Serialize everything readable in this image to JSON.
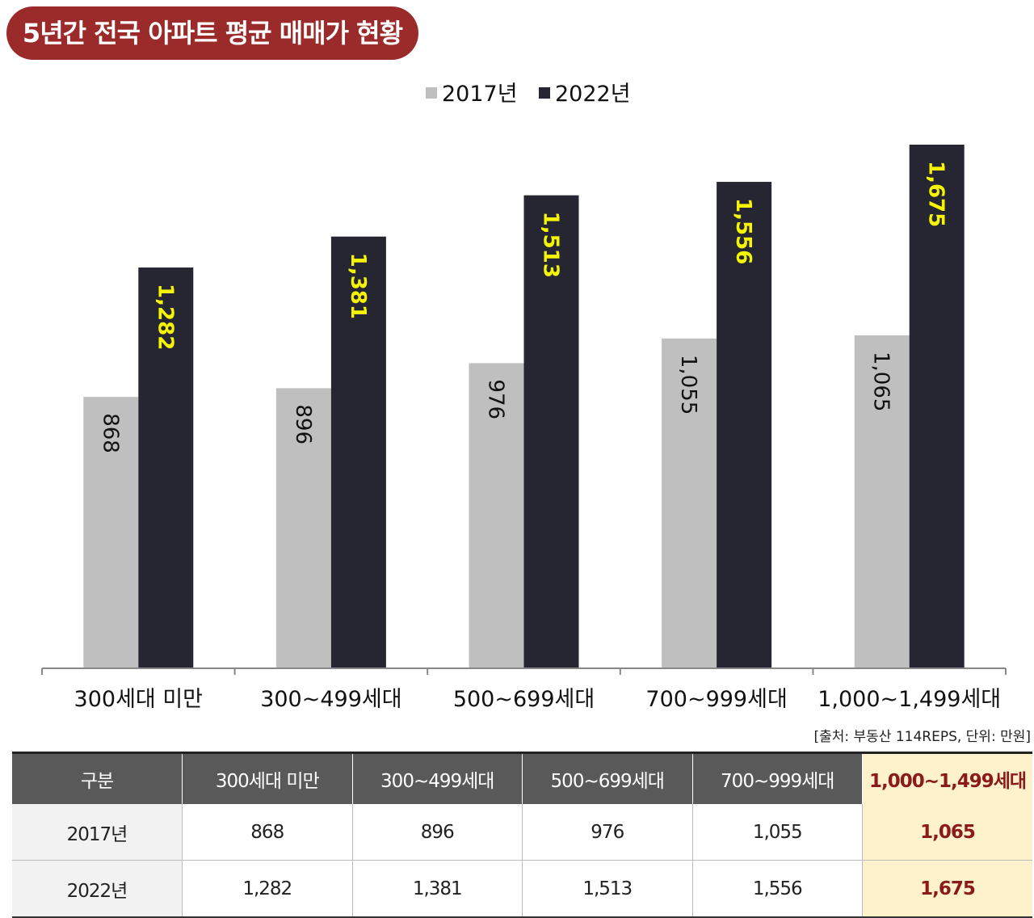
{
  "chart_data": {
    "type": "bar",
    "title": "5년간 전국 아파트 평균 매매가 현황",
    "categories": [
      "300세대 미만",
      "300~499세대",
      "500~699세대",
      "700~999세대",
      "1,000~1,499세대"
    ],
    "series": [
      {
        "name": "2017년",
        "color": "#bfbfbf",
        "label_color": "#111111",
        "values": [
          868,
          896,
          976,
          1055,
          1065
        ],
        "value_labels": [
          "868",
          "896",
          "976",
          "1,055",
          "1,065"
        ]
      },
      {
        "name": "2022년",
        "color": "#262633",
        "label_color": "#f5f500",
        "values": [
          1282,
          1381,
          1513,
          1556,
          1675
        ],
        "value_labels": [
          "1,282",
          "1,381",
          "1,513",
          "1,556",
          "1,675"
        ]
      }
    ],
    "ylim": [
      0,
      1750
    ],
    "legend": "top",
    "source": "[출처: 부동산 114REPS, 단위: 만원]"
  },
  "table": {
    "header": [
      "구분",
      "300세대 미만",
      "300~499세대",
      "500~699세대",
      "700~999세대",
      "1,000~1,499세대"
    ],
    "rows": [
      [
        "2017년",
        "868",
        "896",
        "976",
        "1,055",
        "1,065"
      ],
      [
        "2022년",
        "1,282",
        "1,381",
        "1,513",
        "1,556",
        "1,675"
      ]
    ]
  }
}
